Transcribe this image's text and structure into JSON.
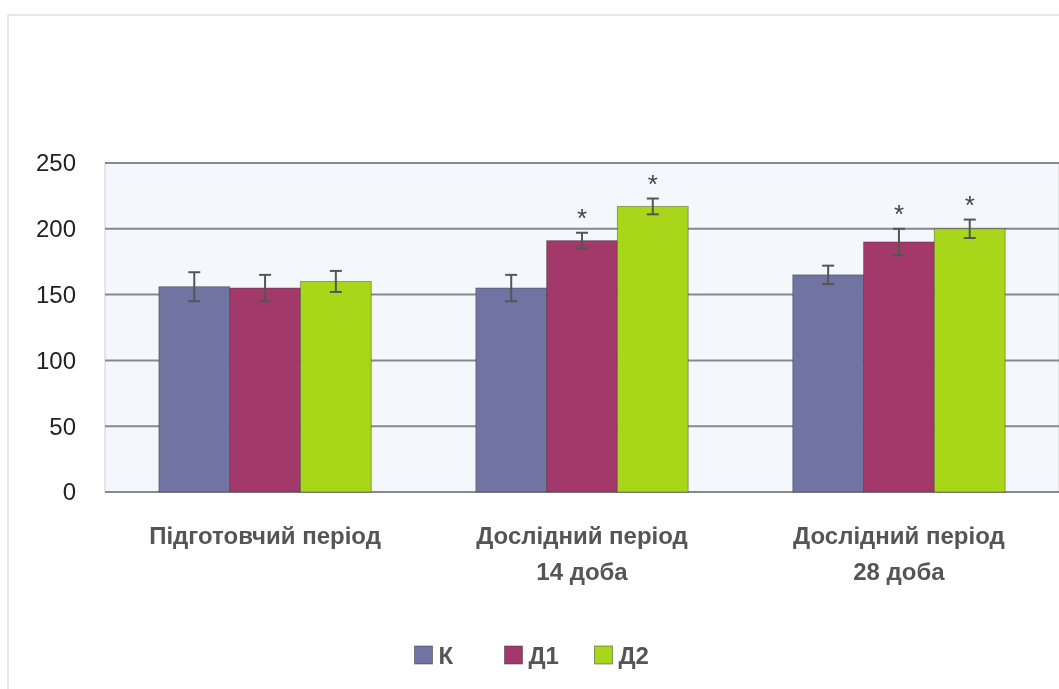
{
  "chart_data": {
    "type": "bar",
    "categories": [
      "Підготовчий період",
      "Дослідний період\n14 доба",
      "Дослідний період\n28 доба"
    ],
    "series": [
      {
        "name": "К",
        "color": "#7173a3",
        "values": [
          156,
          155,
          165
        ],
        "errors": [
          11,
          10,
          7
        ]
      },
      {
        "name": "Д1",
        "color": "#a3386b",
        "values": [
          155,
          191,
          190
        ],
        "errors": [
          10,
          6,
          10
        ],
        "value_labels": [
          null,
          "*",
          "*"
        ]
      },
      {
        "name": "Д2",
        "color": "#a8d618",
        "values": [
          160,
          217,
          200
        ],
        "errors": [
          8,
          6,
          7
        ],
        "value_labels": [
          null,
          "*",
          "*"
        ]
      }
    ],
    "ylim": [
      0,
      250
    ],
    "yticks": [
      0,
      50,
      100,
      150,
      200,
      250
    ],
    "grid": "y",
    "legend": "bottom"
  }
}
